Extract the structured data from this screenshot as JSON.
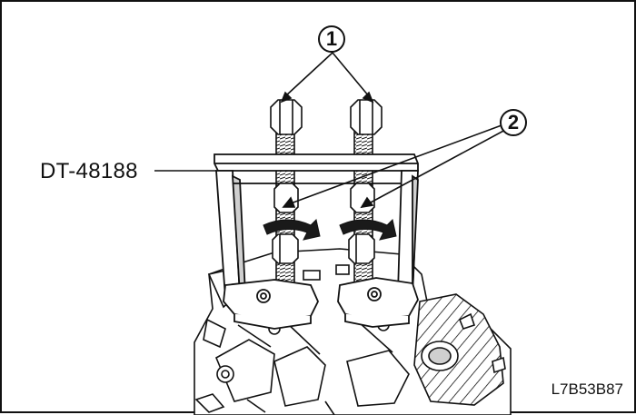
{
  "callouts": {
    "one": "1",
    "two": "2"
  },
  "tool_label": "DT-48188",
  "figure_code": "L7B53B87",
  "colors": {
    "ink": "#111111",
    "shade": "#cfcfcf",
    "arrow": "#1a1a1a"
  }
}
